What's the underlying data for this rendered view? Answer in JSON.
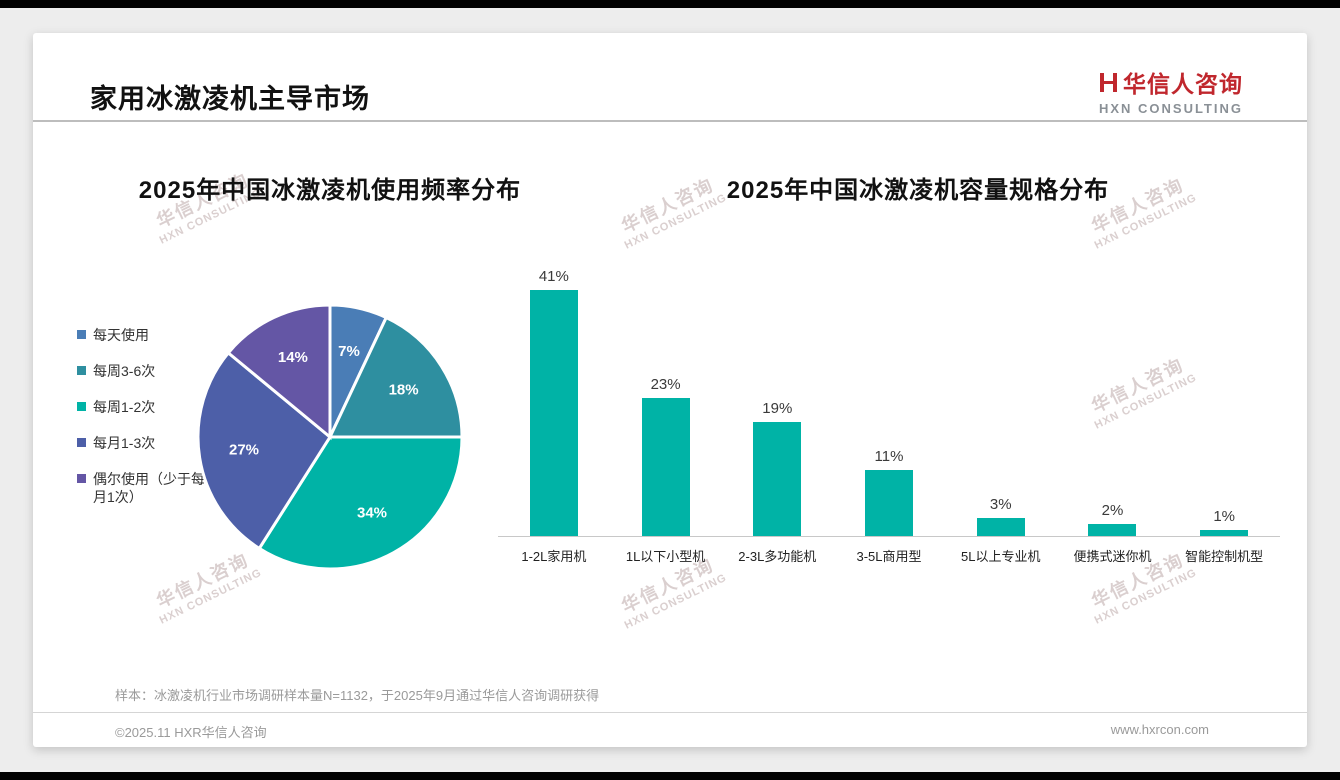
{
  "page": {
    "title": "家用冰激凌机主导市场",
    "sample_note": "样本：冰激凌机行业市场调研样本量N=1132，于2025年9月通过华信人咨询调研获得",
    "copyright": "©2025.11 HXR华信人咨询",
    "website": "www.hxrcon.com"
  },
  "logo": {
    "zh": "华信人咨询",
    "en": "HXN CONSULTING"
  },
  "watermark": {
    "zh": "华信人咨询",
    "en": "HXN CONSULTING"
  },
  "colors": {
    "accent_red": "#c0272d",
    "teal": "#00b3a6",
    "background": "#ededed"
  },
  "chart_data": [
    {
      "type": "pie",
      "title": "2025年中国冰激凌机使用频率分布",
      "labels": [
        "每天使用",
        "每周3-6次",
        "每周1-2次",
        "每月1-3次",
        "偶尔使用（少于每月1次）"
      ],
      "values": [
        7,
        18,
        34,
        27,
        14
      ],
      "colors": [
        "#4a7db6",
        "#2e8fa0",
        "#00b3a6",
        "#4d5fa8",
        "#6456a5"
      ],
      "legend_position": "left",
      "slice_label_format": "percent"
    },
    {
      "type": "bar",
      "title": "2025年中国冰激凌机容量规格分布",
      "categories": [
        "1-2L家用机",
        "1L以下小型机",
        "2-3L多功能机",
        "3-5L商用型",
        "5L以上专业机",
        "便携式迷你机",
        "智能控制机型"
      ],
      "values": [
        41,
        23,
        19,
        11,
        3,
        2,
        1
      ],
      "bar_color": "#00b3a6",
      "value_label_format": "percent",
      "ylim": [
        0,
        45
      ],
      "grid": false,
      "legend": false
    }
  ]
}
